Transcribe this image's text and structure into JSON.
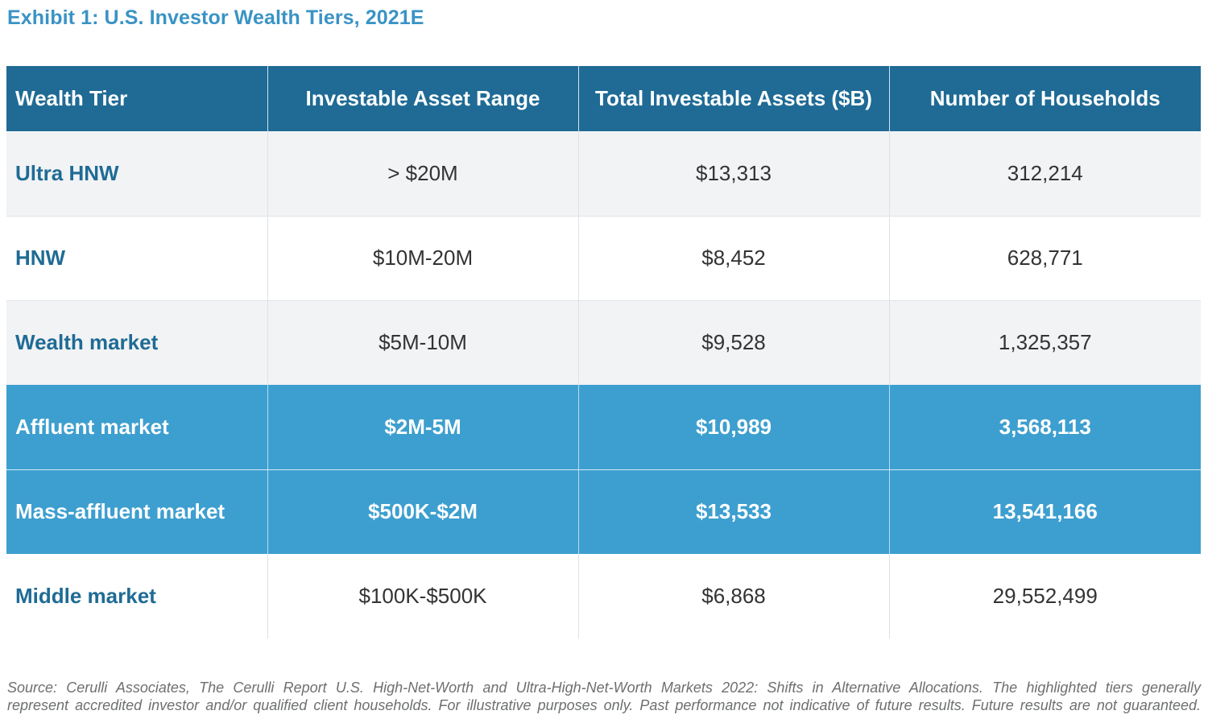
{
  "title": "Exhibit 1: U.S. Investor Wealth Tiers, 2021E",
  "table": {
    "headers": [
      "Wealth Tier",
      "Investable Asset Range",
      "Total Investable Assets ($B)",
      "Number of Households"
    ],
    "rows": [
      {
        "tier": "Ultra HNW",
        "range": "> $20M",
        "assets": "$13,313",
        "households": "312,214",
        "highlighted": false
      },
      {
        "tier": "HNW",
        "range": "$10M-20M",
        "assets": "$8,452",
        "households": "628,771",
        "highlighted": false
      },
      {
        "tier": "Wealth market",
        "range": "$5M-10M",
        "assets": "$9,528",
        "households": "1,325,357",
        "highlighted": false
      },
      {
        "tier": "Affluent market",
        "range": "$2M-5M",
        "assets": "$10,989",
        "households": "3,568,113",
        "highlighted": true
      },
      {
        "tier": "Mass-affluent market",
        "range": "$500K-$2M",
        "assets": "$13,533",
        "households": "13,541,166",
        "highlighted": true
      },
      {
        "tier": "Middle market",
        "range": "$100K-$500K",
        "assets": "$6,868",
        "households": "29,552,499",
        "highlighted": false
      }
    ]
  },
  "source": {
    "line1": "Source: Cerulli Associates, The Cerulli Report U.S. High-Net-Worth and Ultra-High-Net-Worth Markets 2022: Shifts in Alternative Allocations. The highlighted tiers generally",
    "line2": "represent accredited investor and/or qualified client households. For illustrative purposes only. Past performance not indicative of future results. Future results are not guaranteed."
  },
  "colors": {
    "title": "#3a93c5",
    "header_bg": "#1f6b95",
    "highlight_bg": "#3d9fcf",
    "tier_text": "#1f6b95",
    "shaded_row_bg": "#f2f3f5"
  }
}
